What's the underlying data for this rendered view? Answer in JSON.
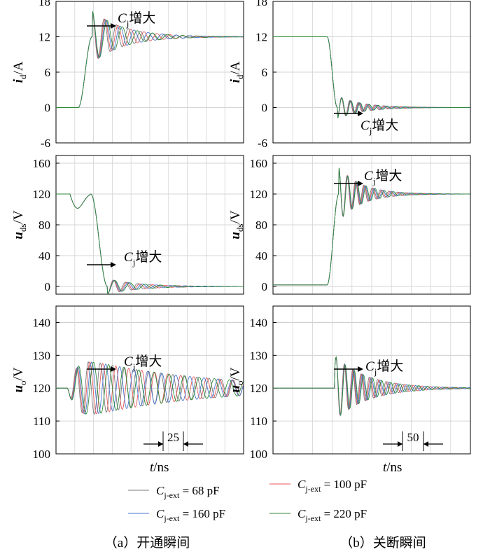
{
  "figure": {
    "columns": [
      {
        "caption": "（a）开通瞬间",
        "xlabel_t": "t",
        "xlabel_unit": "/ns",
        "scale": "25"
      },
      {
        "caption": "（b）关断瞬间",
        "xlabel_t": "t",
        "xlabel_unit": "/ns",
        "scale": "50"
      }
    ],
    "annotation": {
      "c": "C",
      "sub": "j",
      "text": "增大"
    },
    "legend": [
      {
        "sub": "j-ext",
        "text": " = 68 pF",
        "color": "#7a7a7a"
      },
      {
        "sub": "j-ext",
        "text": " = 100 pF",
        "color": "#e8585a"
      },
      {
        "sub": "j-ext",
        "text": " = 160 pF",
        "color": "#4a78d0"
      },
      {
        "sub": "j-ext",
        "text": " = 220 pF",
        "color": "#2f8a3a"
      }
    ]
  },
  "chart_data": [
    {
      "type": "line",
      "panel": "a-id",
      "ylabel": "i",
      "ylabel_sub": "d",
      "ylabel_unit": "/A",
      "ylim": [
        -6,
        18
      ],
      "yticks": [
        18,
        12,
        6,
        0,
        -6
      ],
      "grid": true,
      "xlim": [
        0,
        135
      ],
      "series_params": {
        "kind": "step_up",
        "v0": 0,
        "v1": 12,
        "t0": 16,
        "rise": 10,
        "over": 4.5,
        "decay": 0.045,
        "freqs": [
          0.115,
          0.107,
          0.099,
          0.092
        ]
      }
    },
    {
      "type": "line",
      "panel": "a-uds",
      "ylabel": "u",
      "ylabel_sub": "ds",
      "ylabel_unit": "/V",
      "ylim": [
        -10,
        170
      ],
      "yticks": [
        160,
        120,
        80,
        40,
        0
      ],
      "grid": true,
      "xlim": [
        0,
        135
      ],
      "series_params": {
        "kind": "step_down_bumps",
        "v0": 120,
        "v1": 0,
        "t0": 25,
        "rise": 12,
        "over": 10,
        "decay": 0.045,
        "freqs": [
          0.115,
          0.107,
          0.099,
          0.092
        ]
      }
    },
    {
      "type": "line",
      "panel": "a-uo",
      "ylabel": "u",
      "ylabel_sub": "o",
      "ylabel_unit": "/V",
      "ylim": [
        100,
        145
      ],
      "yticks": [
        140,
        130,
        120,
        110,
        100
      ],
      "grid": true,
      "xlim": [
        0,
        135
      ],
      "series_params": {
        "kind": "ring",
        "v0": 120,
        "t0": 8,
        "amp": 9,
        "decay": 0.012,
        "freqs": [
          0.115,
          0.107,
          0.099,
          0.092
        ]
      }
    },
    {
      "type": "line",
      "panel": "b-id",
      "ylabel": "i",
      "ylabel_sub": "d",
      "ylabel_unit": "/A",
      "ylim": [
        -6,
        18
      ],
      "yticks": [
        18,
        12,
        6,
        0,
        -6
      ],
      "grid": true,
      "xlim": [
        0,
        135
      ],
      "series_params": {
        "kind": "step_down",
        "v0": 12,
        "v1": 0,
        "t0": 37,
        "rise": 7,
        "over": 2,
        "decay": 0.06,
        "freqs": [
          0.175,
          0.17,
          0.165,
          0.16
        ]
      }
    },
    {
      "type": "line",
      "panel": "b-uds",
      "ylabel": "u",
      "ylabel_sub": "ds",
      "ylabel_unit": "/V",
      "ylim": [
        -10,
        170
      ],
      "yticks": [
        160,
        120,
        80,
        40,
        0
      ],
      "grid": true,
      "xlim": [
        0,
        135
      ],
      "series_params": {
        "kind": "step_up",
        "v0": 2,
        "v1": 120,
        "t0": 37,
        "rise": 8,
        "over": 35,
        "decay": 0.065,
        "freqs": [
          0.175,
          0.17,
          0.165,
          0.16
        ]
      }
    },
    {
      "type": "line",
      "panel": "b-uo",
      "ylabel": "u",
      "ylabel_sub": "o",
      "ylabel_unit": "/V",
      "ylim": [
        100,
        145
      ],
      "yticks": [
        140,
        130,
        120,
        110,
        100
      ],
      "grid": true,
      "xlim": [
        0,
        135
      ],
      "series_params": {
        "kind": "ring",
        "v0": 120,
        "t0": 42,
        "amp": 10,
        "decay": 0.045,
        "freqs": [
          0.175,
          0.17,
          0.165,
          0.16
        ]
      }
    }
  ]
}
